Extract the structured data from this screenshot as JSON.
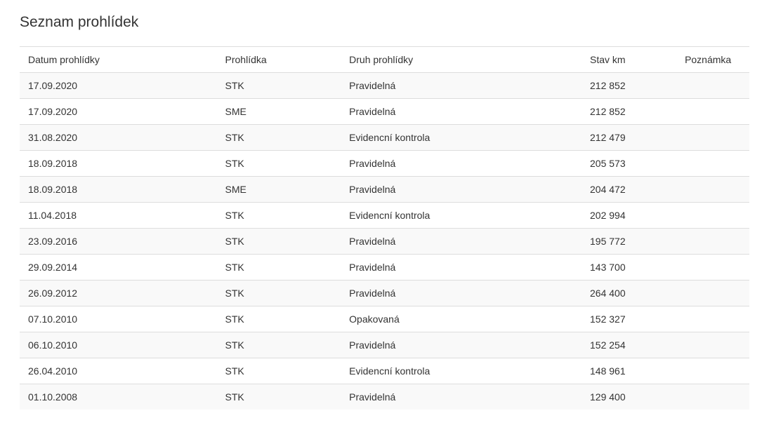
{
  "title": "Seznam prohlídek",
  "table": {
    "columns": [
      {
        "key": "date",
        "label": "Datum prohlídky"
      },
      {
        "key": "type",
        "label": "Prohlídka"
      },
      {
        "key": "kind",
        "label": "Druh prohlídky"
      },
      {
        "key": "km",
        "label": "Stav km"
      },
      {
        "key": "note",
        "label": "Poznámka"
      }
    ],
    "rows": [
      {
        "date": "17.09.2020",
        "type": "STK",
        "kind": "Pravidelná",
        "km": "212 852",
        "note": ""
      },
      {
        "date": "17.09.2020",
        "type": "SME",
        "kind": "Pravidelná",
        "km": "212 852",
        "note": ""
      },
      {
        "date": "31.08.2020",
        "type": "STK",
        "kind": "Evidencní kontrola",
        "km": "212 479",
        "note": ""
      },
      {
        "date": "18.09.2018",
        "type": "STK",
        "kind": "Pravidelná",
        "km": "205 573",
        "note": ""
      },
      {
        "date": "18.09.2018",
        "type": "SME",
        "kind": "Pravidelná",
        "km": "204 472",
        "note": ""
      },
      {
        "date": "11.04.2018",
        "type": "STK",
        "kind": "Evidencní kontrola",
        "km": "202 994",
        "note": ""
      },
      {
        "date": "23.09.2016",
        "type": "STK",
        "kind": "Pravidelná",
        "km": "195 772",
        "note": ""
      },
      {
        "date": "29.09.2014",
        "type": "STK",
        "kind": "Pravidelná",
        "km": "143 700",
        "note": ""
      },
      {
        "date": "26.09.2012",
        "type": "STK",
        "kind": "Pravidelná",
        "km": "264 400",
        "note": ""
      },
      {
        "date": "07.10.2010",
        "type": "STK",
        "kind": "Opakovaná",
        "km": "152 327",
        "note": ""
      },
      {
        "date": "06.10.2010",
        "type": "STK",
        "kind": "Pravidelná",
        "km": "152 254",
        "note": ""
      },
      {
        "date": "26.04.2010",
        "type": "STK",
        "kind": "Evidencní kontrola",
        "km": "148 961",
        "note": ""
      },
      {
        "date": "01.10.2008",
        "type": "STK",
        "kind": "Pravidelná",
        "km": "129 400",
        "note": ""
      }
    ]
  },
  "style": {
    "background_color": "#ffffff",
    "stripe_color": "#f9f9f9",
    "border_color": "#dddddd",
    "text_color": "#333333",
    "title_fontsize": 21,
    "cell_fontsize": 14,
    "column_widths_pct": [
      27,
      17,
      33,
      13,
      10
    ]
  }
}
